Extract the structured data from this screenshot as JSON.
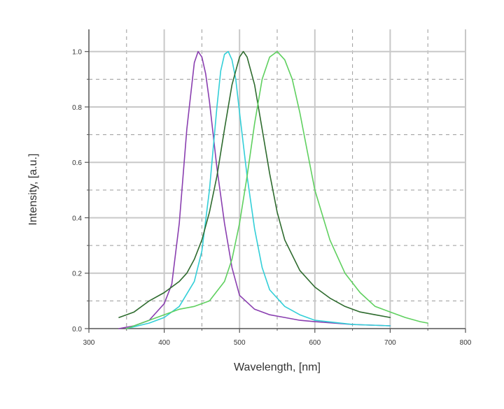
{
  "chart_data": {
    "type": "line",
    "title": "",
    "xlabel": "Wavelength, [nm]",
    "ylabel": "Intensity, [a.u.]",
    "xlim": [
      300,
      800
    ],
    "ylim": [
      0.0,
      1.08
    ],
    "xticks": [
      300,
      400,
      500,
      600,
      700,
      800
    ],
    "yticks": [
      0.0,
      0.2,
      0.4,
      0.6,
      0.8,
      1.0
    ],
    "xtick_labels": [
      "300",
      "400",
      "500",
      "600",
      "700",
      "800"
    ],
    "ytick_labels": [
      "0.0",
      "0.2",
      "0.4",
      "0.6",
      "0.8",
      "1.0"
    ],
    "grid": true,
    "colors": {
      "major_grid": "#c8c8c8",
      "minor_grid": "#9a9a9a",
      "axis": "#555555"
    },
    "series": [
      {
        "color": "#8a3fb0",
        "x": [
          340,
          360,
          380,
          400,
          410,
          420,
          430,
          440,
          445,
          450,
          455,
          460,
          470,
          480,
          490,
          500,
          520,
          540,
          560,
          580,
          600,
          650,
          700
        ],
        "y": [
          0.0,
          0.01,
          0.03,
          0.09,
          0.16,
          0.38,
          0.72,
          0.96,
          1.0,
          0.98,
          0.92,
          0.82,
          0.58,
          0.38,
          0.22,
          0.12,
          0.07,
          0.05,
          0.04,
          0.03,
          0.025,
          0.015,
          0.01
        ]
      },
      {
        "color": "#33cfd8",
        "x": [
          350,
          380,
          400,
          420,
          440,
          450,
          460,
          470,
          475,
          480,
          485,
          490,
          495,
          500,
          510,
          520,
          530,
          540,
          560,
          580,
          600,
          650,
          700
        ],
        "y": [
          0.0,
          0.02,
          0.04,
          0.08,
          0.17,
          0.28,
          0.5,
          0.8,
          0.93,
          0.99,
          1.0,
          0.97,
          0.9,
          0.78,
          0.55,
          0.36,
          0.22,
          0.14,
          0.08,
          0.05,
          0.03,
          0.015,
          0.01
        ]
      },
      {
        "color": "#2e6b2e",
        "x": [
          340,
          350,
          360,
          380,
          400,
          420,
          430,
          440,
          450,
          460,
          470,
          480,
          490,
          500,
          505,
          510,
          520,
          530,
          540,
          550,
          560,
          580,
          600,
          620,
          640,
          660,
          680,
          700
        ],
        "y": [
          0.04,
          0.05,
          0.06,
          0.1,
          0.13,
          0.17,
          0.2,
          0.25,
          0.32,
          0.42,
          0.55,
          0.72,
          0.88,
          0.98,
          1.0,
          0.98,
          0.88,
          0.72,
          0.56,
          0.42,
          0.32,
          0.21,
          0.15,
          0.11,
          0.08,
          0.06,
          0.05,
          0.04
        ]
      },
      {
        "color": "#5fd05f",
        "x": [
          350,
          380,
          400,
          420,
          440,
          460,
          480,
          490,
          500,
          510,
          520,
          530,
          540,
          550,
          560,
          570,
          580,
          590,
          600,
          620,
          640,
          660,
          680,
          700,
          720,
          740,
          750
        ],
        "y": [
          0.0,
          0.03,
          0.05,
          0.07,
          0.08,
          0.1,
          0.17,
          0.25,
          0.38,
          0.55,
          0.74,
          0.9,
          0.98,
          1.0,
          0.97,
          0.9,
          0.78,
          0.64,
          0.5,
          0.32,
          0.2,
          0.13,
          0.08,
          0.06,
          0.04,
          0.025,
          0.02
        ]
      }
    ]
  }
}
